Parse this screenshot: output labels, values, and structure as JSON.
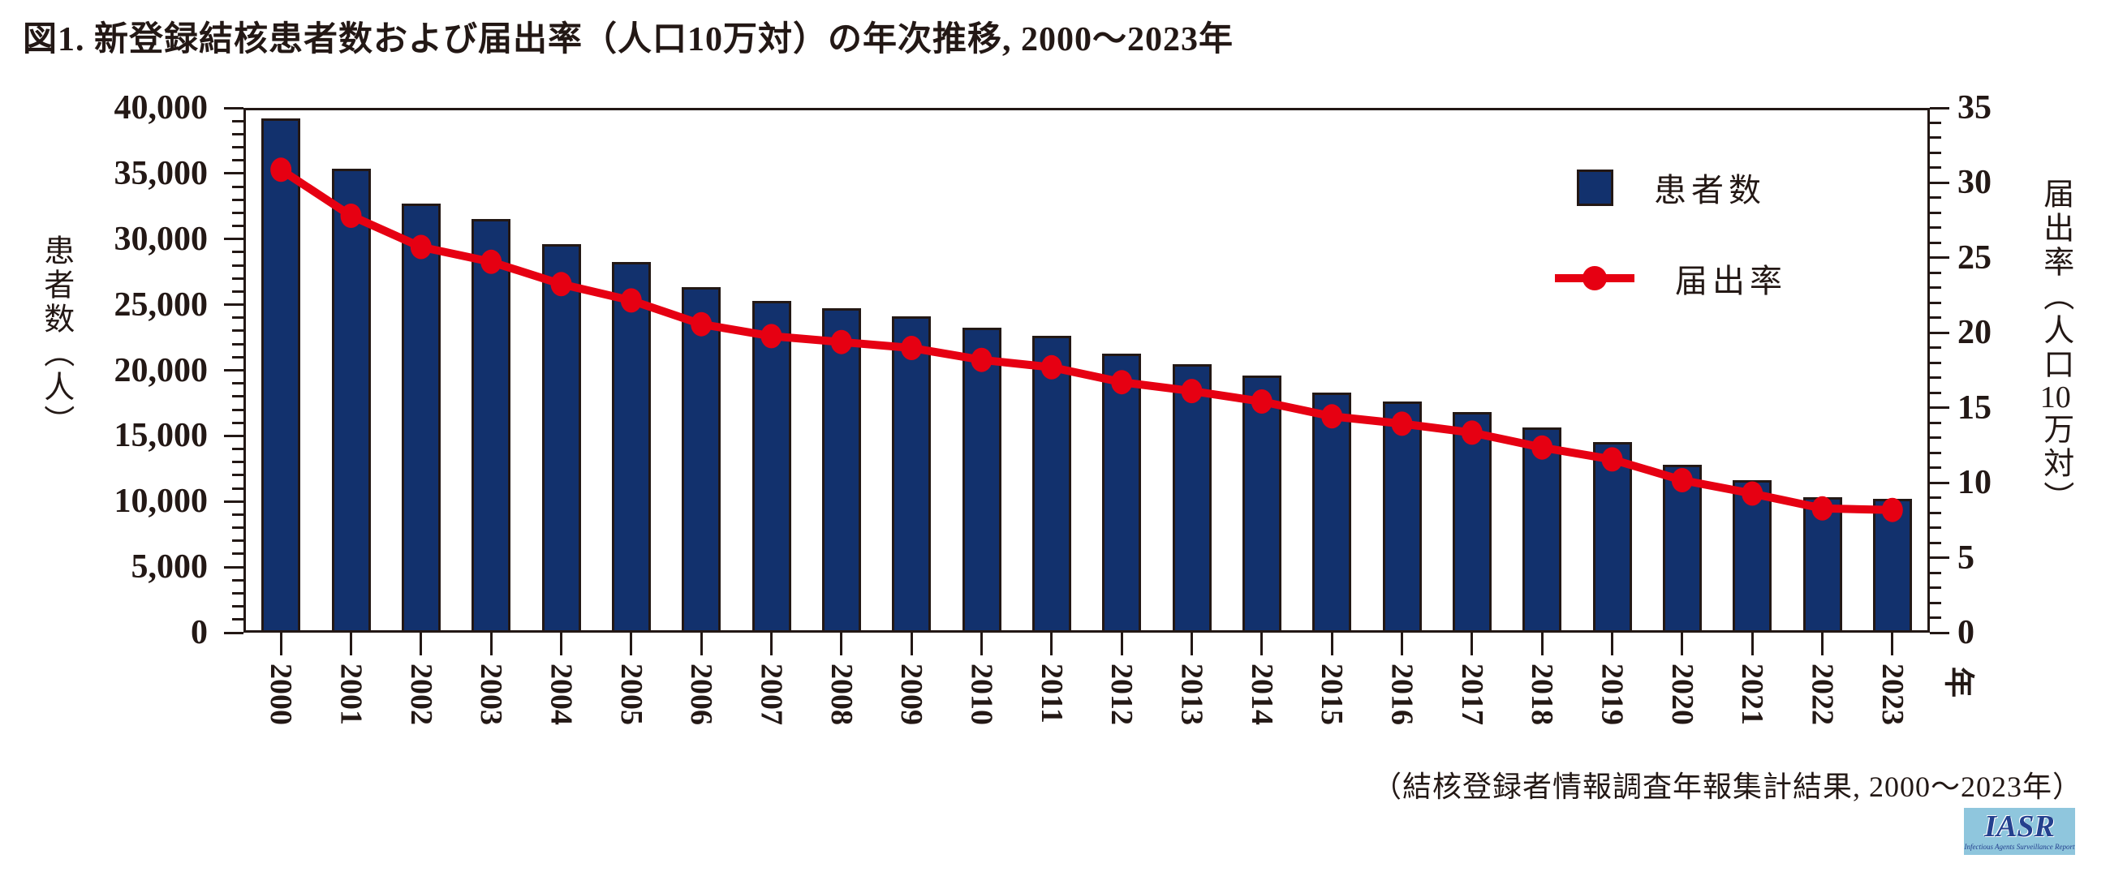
{
  "title": "図1. 新登録結核患者数および届出率（人口10万対）の年次推移, 2000～2023年",
  "source_caption": "（結核登録者情報調査年報集計結果, 2000～2023年）",
  "logo": {
    "name": "IASR",
    "subtitle": "Infectious Agents Surveillance Report"
  },
  "chart_data": {
    "type": "bar",
    "combo": "bar+line-dual-axis",
    "categories": [
      "2000",
      "2001",
      "2002",
      "2003",
      "2004",
      "2005",
      "2006",
      "2007",
      "2008",
      "2009",
      "2010",
      "2011",
      "2012",
      "2013",
      "2014",
      "2015",
      "2016",
      "2017",
      "2018",
      "2019",
      "2020",
      "2021",
      "2022",
      "2023"
    ],
    "series": [
      {
        "name": "患者数",
        "type": "bar",
        "axis": "left",
        "values": [
          39384,
          35489,
          32828,
          31638,
          29736,
          28319,
          26384,
          25311,
          24760,
          24170,
          23261,
          22681,
          21283,
          20495,
          19615,
          18280,
          17625,
          16789,
          15590,
          14460,
          12739,
          11519,
          10235,
          10096
        ]
      },
      {
        "name": "届出率",
        "type": "line",
        "axis": "right",
        "values": [
          31.0,
          27.9,
          25.8,
          24.8,
          23.3,
          22.2,
          20.6,
          19.8,
          19.4,
          19.0,
          18.2,
          17.7,
          16.7,
          16.1,
          15.4,
          14.4,
          13.9,
          13.3,
          12.3,
          11.5,
          10.1,
          9.2,
          8.2,
          8.1
        ]
      }
    ],
    "left_axis": {
      "label": "患者数（人）",
      "min": 0,
      "max": 40000,
      "major": 5000,
      "minor": 1000,
      "ticks": [
        "0",
        "5,000",
        "10,000",
        "15,000",
        "20,000",
        "25,000",
        "30,000",
        "35,000",
        "40,000"
      ]
    },
    "right_axis": {
      "label": "届出率（人口10万対）",
      "label_parts": [
        "届出率（人口",
        "10",
        "万対）"
      ],
      "min": 0,
      "max": 35,
      "major": 5,
      "minor": 1,
      "ticks": [
        "0",
        "5",
        "10",
        "15",
        "20",
        "25",
        "30",
        "35"
      ]
    },
    "x_axis": {
      "unit_label": "年"
    },
    "legend": [
      {
        "label": "患者数",
        "marker": "square"
      },
      {
        "label": "届出率",
        "marker": "line-dot"
      }
    ],
    "grid": false,
    "legend_position": "inside-top-right",
    "colors": {
      "bar": "#12316d",
      "bar_border": "#231815",
      "line": "#e60012",
      "axis": "#231815",
      "text": "#231815",
      "logo_bg": "#8fc6dd",
      "logo_text": "#24408e"
    }
  }
}
